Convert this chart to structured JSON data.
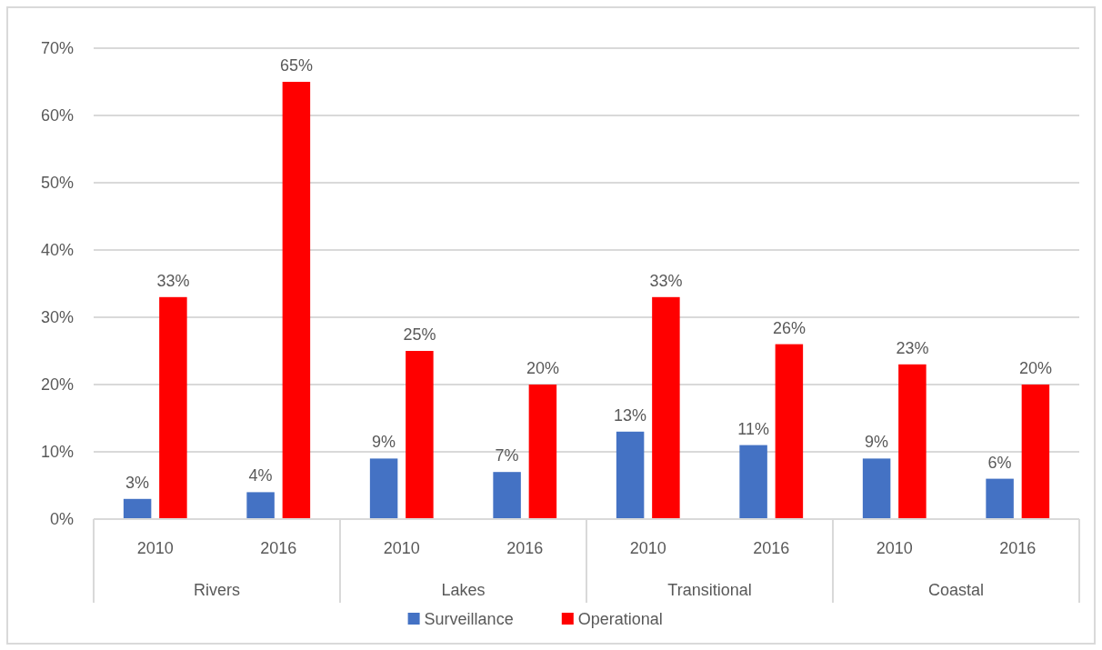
{
  "chart_data": {
    "type": "bar",
    "categories": [
      "2010",
      "2016",
      "2010",
      "2016",
      "2010",
      "2016",
      "2010",
      "2016"
    ],
    "annotations": [
      "Rivers",
      "Lakes",
      "Transitional",
      "Coastal"
    ],
    "series": [
      {
        "name": "Surveillance",
        "color": "#4472c4",
        "values": [
          3,
          4,
          9,
          7,
          13,
          11,
          9,
          6
        ],
        "value_labels": [
          "3%",
          "4%",
          "9%",
          "7%",
          "13%",
          "11%",
          "9%",
          "6%"
        ]
      },
      {
        "name": "Operational",
        "color": "#ff0000",
        "values": [
          33,
          65,
          25,
          20,
          33,
          26,
          23,
          20
        ],
        "value_labels": [
          "33%",
          "65%",
          "25%",
          "20%",
          "33%",
          "26%",
          "23%",
          "20%"
        ]
      }
    ],
    "ylim": [
      0,
      70
    ],
    "yticks": [
      {
        "value": 0,
        "label": "0%"
      },
      {
        "value": 10,
        "label": "10%"
      },
      {
        "value": 20,
        "label": "20%"
      },
      {
        "value": 30,
        "label": "30%"
      },
      {
        "value": 40,
        "label": "40%"
      },
      {
        "value": 50,
        "label": "50%"
      },
      {
        "value": 60,
        "label": "60%"
      },
      {
        "value": 70,
        "label": "70%"
      }
    ],
    "grid": "y",
    "legend": "bottom"
  }
}
